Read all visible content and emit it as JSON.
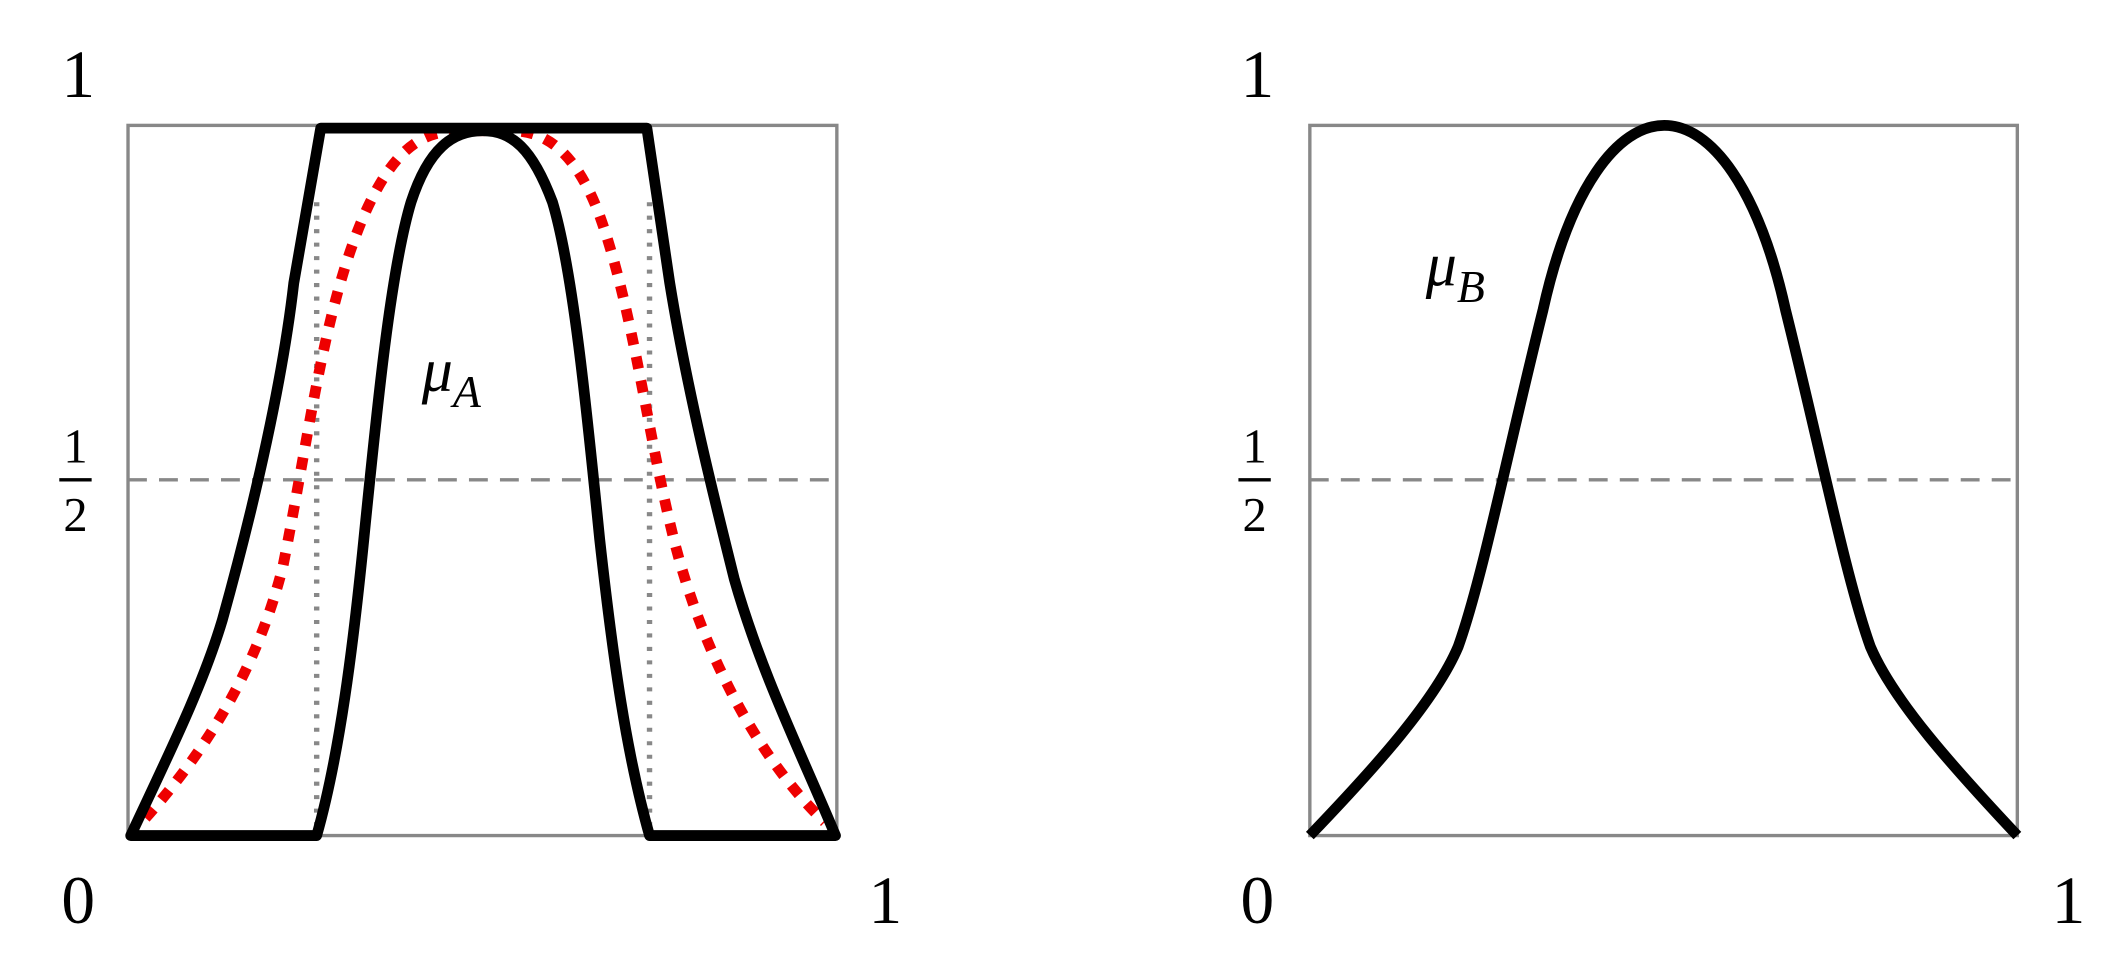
{
  "panels": [
    {
      "y_top": "1",
      "y_half": {
        "numerator": "1",
        "denominator": "2"
      },
      "x_start": "0",
      "x_end": "1",
      "curve_label": {
        "symbol": "μ",
        "subscript": "A"
      }
    },
    {
      "y_top": "1",
      "y_half": {
        "numerator": "1",
        "denominator": "2"
      },
      "x_start": "0",
      "x_end": "1",
      "curve_label": {
        "symbol": "μ",
        "subscript": "B"
      }
    }
  ]
}
